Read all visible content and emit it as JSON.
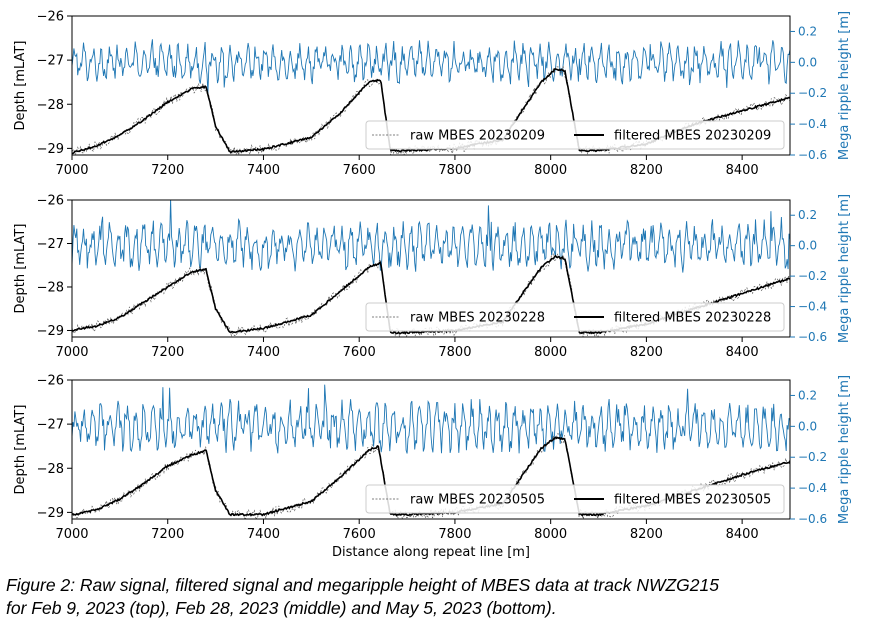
{
  "chart_data": [
    {
      "type": "line",
      "panel": "top",
      "xlabel": "",
      "ylabel": "Depth [mLAT]",
      "y2label": "Mega ripple height [m]",
      "xlim": [
        7000,
        8500
      ],
      "ylim": [
        -29.15,
        -26
      ],
      "y2lim": [
        -0.6,
        0.3
      ],
      "xticks": [
        7000,
        7200,
        7400,
        7600,
        7800,
        8000,
        8200,
        8400
      ],
      "yticks": [
        -29,
        -28,
        -27,
        -26
      ],
      "y2ticks": [
        -0.6,
        -0.4,
        -0.2,
        0.0,
        0.2
      ],
      "depth_profile_x": [
        7000,
        7050,
        7100,
        7150,
        7200,
        7250,
        7280,
        7300,
        7330,
        7400,
        7500,
        7560,
        7620,
        7645,
        7665,
        7700,
        7800,
        7900,
        7980,
        8010,
        8030,
        8060,
        8100,
        8200,
        8300,
        8400,
        8500
      ],
      "depth_profile_y": [
        -29.1,
        -28.95,
        -28.7,
        -28.35,
        -27.95,
        -27.65,
        -27.6,
        -28.5,
        -29.08,
        -29.02,
        -28.75,
        -28.2,
        -27.5,
        -27.45,
        -29.05,
        -29.05,
        -29.0,
        -28.8,
        -27.5,
        -27.2,
        -27.25,
        -29.05,
        -29.05,
        -28.9,
        -28.45,
        -28.15,
        -27.85
      ],
      "ripple_amplitude": 0.08,
      "ripple_mean": 0.0,
      "ripple_period": 18,
      "grid": false,
      "legend_position": "lower-right",
      "series": [
        {
          "name": "raw MBES 20230209",
          "role": "raw",
          "color": "#000000"
        },
        {
          "name": "filtered MBES 20230209",
          "role": "filtered",
          "color": "#000000"
        },
        {
          "name": "",
          "role": "ripple",
          "color": "#1f77b4"
        }
      ]
    },
    {
      "type": "line",
      "panel": "middle",
      "xlabel": "",
      "ylabel": "Depth [mLAT]",
      "y2label": "Mega ripple height [m]",
      "xlim": [
        7000,
        8500
      ],
      "ylim": [
        -29.15,
        -26
      ],
      "y2lim": [
        -0.6,
        0.3
      ],
      "xticks": [
        7000,
        7200,
        7400,
        7600,
        7800,
        8000,
        8200,
        8400
      ],
      "yticks": [
        -29,
        -28,
        -27,
        -26
      ],
      "y2ticks": [
        -0.6,
        -0.4,
        -0.2,
        0.0,
        0.2
      ],
      "depth_profile_x": [
        7000,
        7050,
        7100,
        7150,
        7200,
        7250,
        7280,
        7300,
        7330,
        7400,
        7500,
        7560,
        7620,
        7645,
        7665,
        7700,
        7800,
        7900,
        7980,
        8010,
        8030,
        8060,
        8100,
        8200,
        8300,
        8400,
        8500
      ],
      "depth_profile_y": [
        -29.0,
        -28.9,
        -28.7,
        -28.35,
        -28.0,
        -27.65,
        -27.6,
        -28.5,
        -29.05,
        -28.95,
        -28.65,
        -28.1,
        -27.55,
        -27.45,
        -29.05,
        -29.05,
        -29.0,
        -28.8,
        -27.55,
        -27.3,
        -27.35,
        -29.05,
        -29.05,
        -28.85,
        -28.5,
        -28.15,
        -27.8
      ],
      "ripple_amplitude": 0.1,
      "ripple_mean": 0.0,
      "ripple_period": 18,
      "grid": false,
      "legend_position": "lower-right",
      "series": [
        {
          "name": "raw MBES 20230228",
          "role": "raw",
          "color": "#000000"
        },
        {
          "name": "filtered MBES 20230228",
          "role": "filtered",
          "color": "#000000"
        },
        {
          "name": "",
          "role": "ripple",
          "color": "#1f77b4"
        }
      ]
    },
    {
      "type": "line",
      "panel": "bottom",
      "xlabel": "Distance along repeat line [m]",
      "ylabel": "Depth [mLAT]",
      "y2label": "Mega ripple height [m]",
      "xlim": [
        7000,
        8500
      ],
      "ylim": [
        -29.15,
        -26
      ],
      "y2lim": [
        -0.6,
        0.3
      ],
      "xticks": [
        7000,
        7200,
        7400,
        7600,
        7800,
        8000,
        8200,
        8400
      ],
      "yticks": [
        -29,
        -28,
        -27,
        -26
      ],
      "y2ticks": [
        -0.6,
        -0.4,
        -0.2,
        0.0,
        0.2
      ],
      "depth_profile_x": [
        7000,
        7050,
        7100,
        7150,
        7200,
        7250,
        7280,
        7300,
        7330,
        7400,
        7500,
        7560,
        7620,
        7640,
        7665,
        7700,
        7800,
        7900,
        7980,
        8010,
        8030,
        8060,
        8100,
        8200,
        8300,
        8400,
        8500
      ],
      "depth_profile_y": [
        -29.05,
        -28.95,
        -28.7,
        -28.35,
        -27.95,
        -27.7,
        -27.6,
        -28.5,
        -29.05,
        -29.05,
        -28.75,
        -28.2,
        -27.6,
        -27.5,
        -29.05,
        -29.05,
        -29.0,
        -28.8,
        -27.55,
        -27.3,
        -27.35,
        -29.05,
        -29.05,
        -28.85,
        -28.5,
        -28.15,
        -27.85
      ],
      "ripple_amplitude": 0.1,
      "ripple_mean": 0.0,
      "ripple_period": 18,
      "grid": false,
      "legend_position": "lower-right",
      "series": [
        {
          "name": "raw MBES 20230505",
          "role": "raw",
          "color": "#000000"
        },
        {
          "name": "filtered MBES 20230505",
          "role": "filtered",
          "color": "#000000"
        },
        {
          "name": "",
          "role": "ripple",
          "color": "#1f77b4"
        }
      ]
    }
  ],
  "caption": {
    "line1": "Figure 2: Raw signal, filtered signal and megaripple height of MBES data at track NWZG215",
    "line2": "for Feb 9, 2023 (top), Feb 28, 2023 (middle) and May 5, 2023 (bottom)."
  },
  "colors": {
    "ripple": "#1f77b4",
    "raw": "#000000",
    "filtered": "#000000",
    "right_axis": "#1f77b4"
  }
}
